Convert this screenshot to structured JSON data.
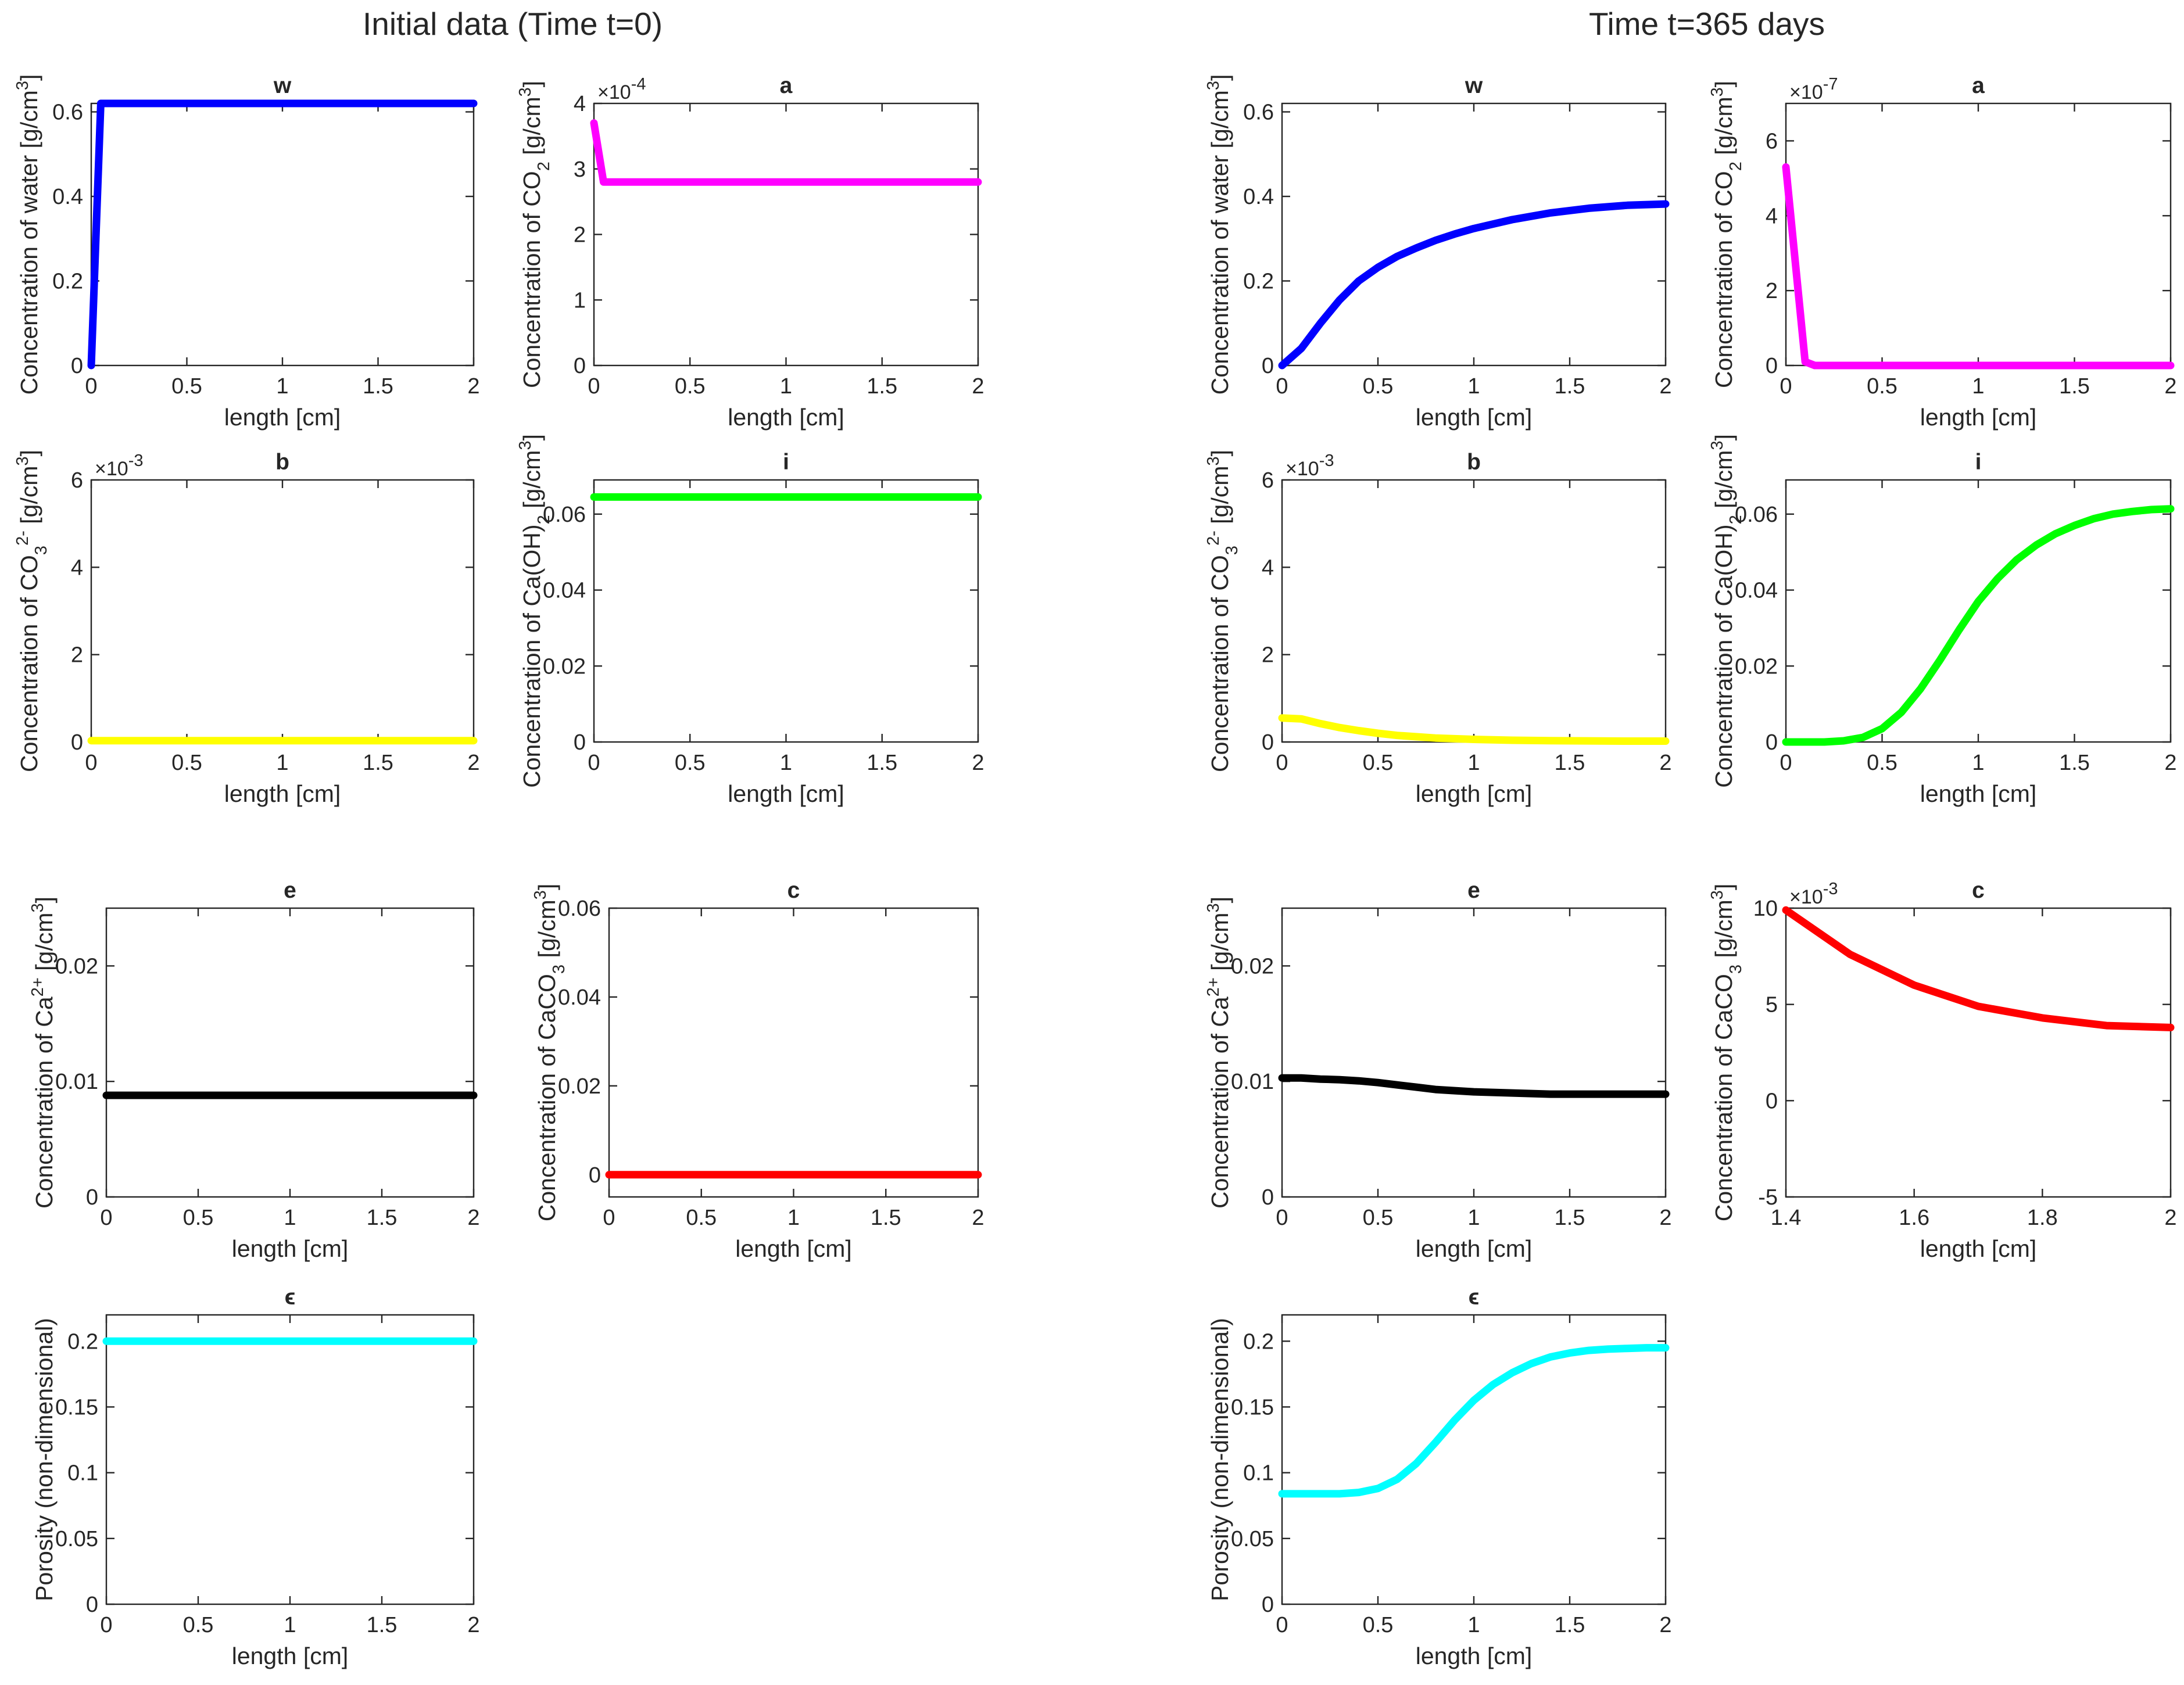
{
  "figure": {
    "left_title": "Initial data (Time t=0)",
    "right_title": "Time t=365 days"
  },
  "chart_data": [
    {
      "id": "t0-w",
      "type": "line",
      "title": "w",
      "xlabel": "length [cm]",
      "ylabel": [
        "Concentration of water [g/cm",
        {
          "sup": "3"
        },
        "]"
      ],
      "xlim": [
        0,
        2
      ],
      "ylim": [
        0,
        0.62
      ],
      "xticks": [
        0,
        0.5,
        1,
        1.5,
        2
      ],
      "xtick_labels": [
        "0",
        "0.5",
        "1",
        "1.5",
        "2"
      ],
      "yticks": [
        0,
        0.2,
        0.4,
        0.6
      ],
      "ytick_labels": [
        "0",
        "0.2",
        "0.4",
        "0.6"
      ],
      "exponent": null,
      "color": "#0000ff",
      "series": [
        {
          "name": "w",
          "x": [
            0,
            0.05,
            0.1,
            0.5,
            1,
            1.5,
            2
          ],
          "y": [
            0,
            0.62,
            0.62,
            0.62,
            0.62,
            0.62,
            0.62
          ]
        }
      ]
    },
    {
      "id": "t0-a",
      "type": "line",
      "title": "a",
      "xlabel": "length [cm]",
      "ylabel": [
        "Concentration of CO",
        {
          "sub": "2"
        },
        " [g/cm",
        {
          "sup": "3"
        },
        "]"
      ],
      "xlim": [
        0,
        2
      ],
      "ylim": [
        0,
        4
      ],
      "xticks": [
        0,
        0.5,
        1,
        1.5,
        2
      ],
      "xtick_labels": [
        "0",
        "0.5",
        "1",
        "1.5",
        "2"
      ],
      "yticks": [
        0,
        1,
        2,
        3,
        4
      ],
      "ytick_labels": [
        "0",
        "1",
        "2",
        "3",
        "4"
      ],
      "exponent": "-4",
      "color": "#ff00ff",
      "series": [
        {
          "name": "a",
          "x": [
            0,
            0.05,
            0.1,
            0.5,
            1,
            1.5,
            2
          ],
          "y": [
            3.7,
            2.8,
            2.8,
            2.8,
            2.8,
            2.8,
            2.8
          ]
        }
      ]
    },
    {
      "id": "t365-w",
      "type": "line",
      "title": "w",
      "xlabel": "length [cm]",
      "ylabel": [
        "Concentration of water [g/cm",
        {
          "sup": "3"
        },
        "]"
      ],
      "xlim": [
        0,
        2
      ],
      "ylim": [
        0,
        0.62
      ],
      "xticks": [
        0,
        0.5,
        1,
        1.5,
        2
      ],
      "xtick_labels": [
        "0",
        "0.5",
        "1",
        "1.5",
        "2"
      ],
      "yticks": [
        0,
        0.2,
        0.4,
        0.6
      ],
      "ytick_labels": [
        "0",
        "0.2",
        "0.4",
        "0.6"
      ],
      "exponent": null,
      "color": "#0000ff",
      "series": [
        {
          "name": "w",
          "x": [
            0,
            0.1,
            0.2,
            0.3,
            0.4,
            0.5,
            0.6,
            0.7,
            0.8,
            0.9,
            1,
            1.2,
            1.4,
            1.6,
            1.8,
            2
          ],
          "y": [
            0,
            0.04,
            0.1,
            0.155,
            0.2,
            0.232,
            0.258,
            0.278,
            0.296,
            0.311,
            0.324,
            0.345,
            0.361,
            0.372,
            0.379,
            0.382
          ]
        }
      ]
    },
    {
      "id": "t365-a",
      "type": "line",
      "title": "a",
      "xlabel": "length [cm]",
      "ylabel": [
        "Concentration of CO",
        {
          "sub": "2"
        },
        " [g/cm",
        {
          "sup": "3"
        },
        "]"
      ],
      "xlim": [
        0,
        2
      ],
      "ylim": [
        0,
        7
      ],
      "xticks": [
        0,
        0.5,
        1,
        1.5,
        2
      ],
      "xtick_labels": [
        "0",
        "0.5",
        "1",
        "1.5",
        "2"
      ],
      "yticks": [
        0,
        2,
        4,
        6
      ],
      "ytick_labels": [
        "0",
        "2",
        "4",
        "6"
      ],
      "exponent": "-7",
      "color": "#ff00ff",
      "series": [
        {
          "name": "a",
          "x": [
            0,
            0.1,
            0.15,
            0.5,
            1,
            1.5,
            2
          ],
          "y": [
            5.3,
            0.1,
            0,
            0,
            0,
            0,
            0
          ]
        }
      ]
    },
    {
      "id": "t0-b",
      "type": "line",
      "title": "b",
      "xlabel": "length [cm]",
      "ylabel": [
        "Concentration of CO",
        {
          "sub": "3"
        },
        {
          "sup": "2-"
        },
        " [g/cm",
        {
          "sup": "3"
        },
        "]"
      ],
      "xlim": [
        0,
        2
      ],
      "ylim": [
        0,
        6
      ],
      "xticks": [
        0,
        0.5,
        1,
        1.5,
        2
      ],
      "xtick_labels": [
        "0",
        "0.5",
        "1",
        "1.5",
        "2"
      ],
      "yticks": [
        0,
        2,
        4,
        6
      ],
      "ytick_labels": [
        "0",
        "2",
        "4",
        "6"
      ],
      "exponent": "-3",
      "color": "#ffff00",
      "series": [
        {
          "name": "b",
          "x": [
            0,
            0.5,
            1,
            1.5,
            2
          ],
          "y": [
            0.03,
            0.03,
            0.03,
            0.03,
            0.03
          ]
        }
      ]
    },
    {
      "id": "t0-i",
      "type": "line",
      "title": "i",
      "xlabel": "length [cm]",
      "ylabel": [
        "Concentration of Ca(OH)",
        {
          "sub": "2"
        },
        " [g/cm",
        {
          "sup": "3"
        },
        "]"
      ],
      "xlim": [
        0,
        2
      ],
      "ylim": [
        0,
        0.069
      ],
      "xticks": [
        0,
        0.5,
        1,
        1.5,
        2
      ],
      "xtick_labels": [
        "0",
        "0.5",
        "1",
        "1.5",
        "2"
      ],
      "yticks": [
        0,
        0.02,
        0.04,
        0.06
      ],
      "ytick_labels": [
        "0",
        "0.02",
        "0.04",
        "0.06"
      ],
      "exponent": null,
      "color": "#00ff00",
      "series": [
        {
          "name": "i",
          "x": [
            0,
            0.5,
            1,
            1.5,
            2
          ],
          "y": [
            0.0645,
            0.0645,
            0.0645,
            0.0645,
            0.0645
          ]
        }
      ]
    },
    {
      "id": "t365-b",
      "type": "line",
      "title": "b",
      "xlabel": "length [cm]",
      "ylabel": [
        "Concentration of CO",
        {
          "sub": "3"
        },
        {
          "sup": "2-"
        },
        " [g/cm",
        {
          "sup": "3"
        },
        "]"
      ],
      "xlim": [
        0,
        2
      ],
      "ylim": [
        0,
        6
      ],
      "xticks": [
        0,
        0.5,
        1,
        1.5,
        2
      ],
      "xtick_labels": [
        "0",
        "0.5",
        "1",
        "1.5",
        "2"
      ],
      "yticks": [
        0,
        2,
        4,
        6
      ],
      "ytick_labels": [
        "0",
        "2",
        "4",
        "6"
      ],
      "exponent": "-3",
      "color": "#ffff00",
      "series": [
        {
          "name": "b",
          "x": [
            0,
            0.1,
            0.2,
            0.3,
            0.4,
            0.5,
            0.6,
            0.8,
            1,
            1.2,
            1.4,
            1.6,
            1.8,
            2
          ],
          "y": [
            0.55,
            0.53,
            0.42,
            0.33,
            0.26,
            0.2,
            0.15,
            0.09,
            0.06,
            0.04,
            0.03,
            0.025,
            0.02,
            0.02
          ]
        }
      ]
    },
    {
      "id": "t365-i",
      "type": "line",
      "title": "i",
      "xlabel": "length [cm]",
      "ylabel": [
        "Concentration of Ca(OH)",
        {
          "sub": "2"
        },
        " [g/cm",
        {
          "sup": "3"
        },
        "]"
      ],
      "xlim": [
        0,
        2
      ],
      "ylim": [
        0,
        0.069
      ],
      "xticks": [
        0,
        0.5,
        1,
        1.5,
        2
      ],
      "xtick_labels": [
        "0",
        "0.5",
        "1",
        "1.5",
        "2"
      ],
      "yticks": [
        0,
        0.02,
        0.04,
        0.06
      ],
      "ytick_labels": [
        "0",
        "0.02",
        "0.04",
        "0.06"
      ],
      "exponent": null,
      "color": "#00ff00",
      "series": [
        {
          "name": "i",
          "x": [
            0,
            0.1,
            0.2,
            0.3,
            0.4,
            0.5,
            0.6,
            0.7,
            0.8,
            0.9,
            1,
            1.1,
            1.2,
            1.3,
            1.4,
            1.5,
            1.6,
            1.7,
            1.8,
            1.9,
            2
          ],
          "y": [
            0,
            0,
            0,
            0.0003,
            0.0012,
            0.0035,
            0.0078,
            0.014,
            0.0215,
            0.0295,
            0.037,
            0.043,
            0.048,
            0.0518,
            0.0548,
            0.057,
            0.0588,
            0.06,
            0.0607,
            0.0612,
            0.0614
          ]
        }
      ]
    },
    {
      "id": "t0-e",
      "type": "line",
      "title": "e",
      "xlabel": "length [cm]",
      "ylabel": [
        "Concentration of Ca",
        {
          "sup": "2+"
        },
        " [g/cm",
        {
          "sup": "3"
        },
        "]"
      ],
      "xlim": [
        0,
        2
      ],
      "ylim": [
        0,
        0.025
      ],
      "xticks": [
        0,
        0.5,
        1,
        1.5,
        2
      ],
      "xtick_labels": [
        "0",
        "0.5",
        "1",
        "1.5",
        "2"
      ],
      "yticks": [
        0,
        0.01,
        0.02
      ],
      "ytick_labels": [
        "0",
        "0.01",
        "0.02"
      ],
      "exponent": null,
      "color": "#000000",
      "series": [
        {
          "name": "e",
          "x": [
            0,
            0.5,
            1,
            1.5,
            2
          ],
          "y": [
            0.0088,
            0.0088,
            0.0088,
            0.0088,
            0.0088
          ]
        }
      ]
    },
    {
      "id": "t0-c",
      "type": "line",
      "title": "c",
      "xlabel": "length [cm]",
      "ylabel": [
        "Concentration of CaCO",
        {
          "sub": "3"
        },
        " [g/cm",
        {
          "sup": "3"
        },
        "]"
      ],
      "xlim": [
        0,
        2
      ],
      "ylim": [
        -0.005,
        0.06
      ],
      "xticks": [
        0,
        0.5,
        1,
        1.5,
        2
      ],
      "xtick_labels": [
        "0",
        "0.5",
        "1",
        "1.5",
        "2"
      ],
      "yticks": [
        0,
        0.02,
        0.04,
        0.06
      ],
      "ytick_labels": [
        "0",
        "0.02",
        "0.04",
        "0.06"
      ],
      "exponent": null,
      "color": "#ff0000",
      "series": [
        {
          "name": "c",
          "x": [
            0,
            0.5,
            1,
            1.5,
            2
          ],
          "y": [
            0,
            0,
            0,
            0,
            0
          ]
        }
      ]
    },
    {
      "id": "t365-e",
      "type": "line",
      "title": "e",
      "xlabel": "length [cm]",
      "ylabel": [
        "Concentration of Ca",
        {
          "sup": "2+"
        },
        " [g/cm",
        {
          "sup": "3"
        },
        "]"
      ],
      "xlim": [
        0,
        2
      ],
      "ylim": [
        0,
        0.025
      ],
      "xticks": [
        0,
        0.5,
        1,
        1.5,
        2
      ],
      "xtick_labels": [
        "0",
        "0.5",
        "1",
        "1.5",
        "2"
      ],
      "yticks": [
        0,
        0.01,
        0.02
      ],
      "ytick_labels": [
        "0",
        "0.01",
        "0.02"
      ],
      "exponent": null,
      "color": "#000000",
      "series": [
        {
          "name": "e",
          "x": [
            0,
            0.1,
            0.2,
            0.3,
            0.4,
            0.5,
            0.6,
            0.7,
            0.8,
            0.9,
            1,
            1.2,
            1.4,
            1.6,
            1.8,
            2
          ],
          "y": [
            0.0103,
            0.0103,
            0.0102,
            0.01015,
            0.01005,
            0.0099,
            0.0097,
            0.0095,
            0.0093,
            0.0092,
            0.0091,
            0.009,
            0.0089,
            0.0089,
            0.0089,
            0.0089
          ]
        }
      ]
    },
    {
      "id": "t365-c",
      "type": "line",
      "title": "c",
      "xlabel": "length [cm]",
      "ylabel": [
        "Concentration of CaCO",
        {
          "sub": "3"
        },
        " [g/cm",
        {
          "sup": "3"
        },
        "]"
      ],
      "xlim": [
        1.4,
        2
      ],
      "ylim": [
        -5,
        10
      ],
      "xticks": [
        1.4,
        1.6,
        1.8,
        2
      ],
      "xtick_labels": [
        "1.4",
        "1.6",
        "1.8",
        "2"
      ],
      "yticks": [
        -5,
        0,
        5,
        10
      ],
      "ytick_labels": [
        "-5",
        "0",
        "5",
        "10"
      ],
      "exponent": "-3",
      "color": "#ff0000",
      "series": [
        {
          "name": "c",
          "x": [
            1.4,
            1.5,
            1.6,
            1.7,
            1.8,
            1.9,
            2
          ],
          "y": [
            9.9,
            7.6,
            6.0,
            4.9,
            4.3,
            3.9,
            3.8
          ]
        }
      ]
    },
    {
      "id": "t0-eps",
      "type": "line",
      "title": "ϵ",
      "xlabel": "length [cm]",
      "ylabel": [
        "Porosity (non-dimensional)"
      ],
      "xlim": [
        0,
        2
      ],
      "ylim": [
        0,
        0.22
      ],
      "xticks": [
        0,
        0.5,
        1,
        1.5,
        2
      ],
      "xtick_labels": [
        "0",
        "0.5",
        "1",
        "1.5",
        "2"
      ],
      "yticks": [
        0,
        0.05,
        0.1,
        0.15,
        0.2
      ],
      "ytick_labels": [
        "0",
        "0.05",
        "0.1",
        "0.15",
        "0.2"
      ],
      "exponent": null,
      "color": "#00ffff",
      "series": [
        {
          "name": "ϵ",
          "x": [
            0,
            0.5,
            1,
            1.5,
            2
          ],
          "y": [
            0.2,
            0.2,
            0.2,
            0.2,
            0.2
          ]
        }
      ]
    },
    {
      "id": "t365-eps",
      "type": "line",
      "title": "ϵ",
      "xlabel": "length [cm]",
      "ylabel": [
        "Porosity (non-dimensional)"
      ],
      "xlim": [
        0,
        2
      ],
      "ylim": [
        0,
        0.22
      ],
      "xticks": [
        0,
        0.5,
        1,
        1.5,
        2
      ],
      "xtick_labels": [
        "0",
        "0.5",
        "1",
        "1.5",
        "2"
      ],
      "yticks": [
        0,
        0.05,
        0.1,
        0.15,
        0.2
      ],
      "ytick_labels": [
        "0",
        "0.05",
        "0.1",
        "0.15",
        "0.2"
      ],
      "exponent": null,
      "color": "#00ffff",
      "series": [
        {
          "name": "ϵ",
          "x": [
            0,
            0.1,
            0.2,
            0.3,
            0.4,
            0.5,
            0.6,
            0.7,
            0.8,
            0.9,
            1,
            1.1,
            1.2,
            1.3,
            1.4,
            1.5,
            1.6,
            1.7,
            1.8,
            1.9,
            2
          ],
          "y": [
            0.084,
            0.084,
            0.084,
            0.084,
            0.085,
            0.088,
            0.095,
            0.107,
            0.123,
            0.14,
            0.155,
            0.167,
            0.176,
            0.183,
            0.188,
            0.191,
            0.193,
            0.194,
            0.1945,
            0.195,
            0.195
          ]
        }
      ]
    }
  ]
}
